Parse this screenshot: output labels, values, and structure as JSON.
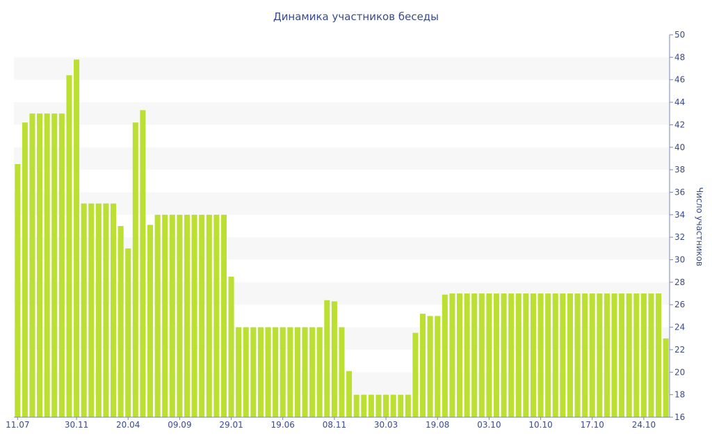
{
  "chart_data": {
    "type": "bar",
    "title": "Динамика участников беседы",
    "ylabel": "Число участников",
    "xlabel": "",
    "ylim": [
      16,
      50
    ],
    "yticks": [
      16,
      18,
      20,
      22,
      24,
      26,
      28,
      30,
      32,
      34,
      36,
      38,
      40,
      42,
      44,
      46,
      48,
      50
    ],
    "y_axis_side": "right",
    "grid": "alternating horizontal bands",
    "bar_color": "#bbe033",
    "band_color": "#f7f7f7",
    "text_color": "#3a4a8a",
    "x_tick_labels": [
      {
        "index": 0,
        "label": "11.07"
      },
      {
        "index": 8,
        "label": "30.11"
      },
      {
        "index": 15,
        "label": "20.04"
      },
      {
        "index": 22,
        "label": "09.09"
      },
      {
        "index": 29,
        "label": "29.01"
      },
      {
        "index": 36,
        "label": "19.06"
      },
      {
        "index": 43,
        "label": "08.11"
      },
      {
        "index": 50,
        "label": "30.03"
      },
      {
        "index": 57,
        "label": "19.08"
      },
      {
        "index": 64,
        "label": "03.10"
      },
      {
        "index": 71,
        "label": "10.10"
      },
      {
        "index": 78,
        "label": "17.10"
      },
      {
        "index": 85,
        "label": "24.10"
      }
    ],
    "values": [
      38.5,
      42.2,
      43,
      43,
      43,
      43,
      43,
      46.4,
      47.8,
      35,
      35,
      35,
      35,
      35,
      33,
      31,
      42.2,
      43.3,
      33.1,
      34,
      34,
      34,
      34,
      34,
      34,
      34,
      34,
      34,
      34,
      28.5,
      24,
      24,
      24,
      24,
      24,
      24,
      24,
      24,
      24,
      24,
      24,
      24,
      26.4,
      26.3,
      24,
      20.1,
      18,
      18,
      18,
      18,
      18,
      18,
      18,
      18,
      23.5,
      25.2,
      25,
      25,
      26.9,
      27,
      27,
      27,
      27,
      27,
      27,
      27,
      27,
      27,
      27,
      27,
      27,
      27,
      27,
      27,
      27,
      27,
      27,
      27,
      27,
      27,
      27,
      27,
      27,
      27,
      27,
      27,
      27,
      27,
      23
    ]
  }
}
